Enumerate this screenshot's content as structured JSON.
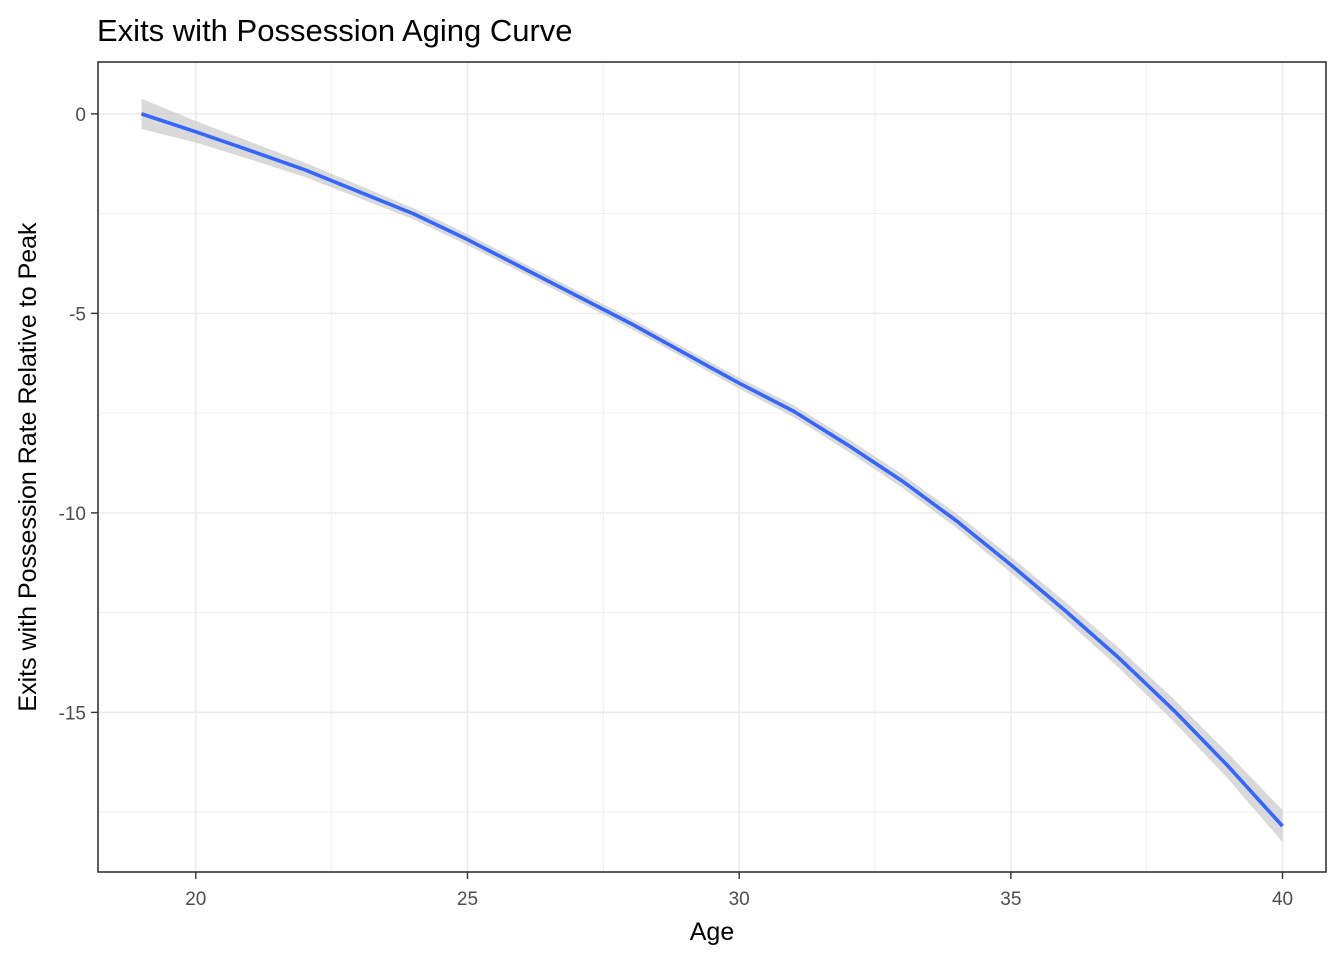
{
  "chart_data": {
    "type": "line",
    "title": "Exits with Possession Aging Curve",
    "xlabel": "Age",
    "ylabel": "Exits with Possession Rate Relative to Peak",
    "xlim": [
      18.2,
      40.8
    ],
    "ylim": [
      -19.0,
      1.3
    ],
    "x_ticks": [
      20,
      25,
      30,
      35,
      40
    ],
    "x_tick_labels": [
      "20",
      "25",
      "30",
      "35",
      "40"
    ],
    "x_minor_ticks": [
      22.5,
      27.5,
      32.5,
      37.5
    ],
    "y_ticks": [
      0,
      -5,
      -10,
      -15
    ],
    "y_tick_labels": [
      "0",
      "-5",
      "-10",
      "-15"
    ],
    "y_minor_ticks": [
      -2.5,
      -7.5,
      -12.5,
      -17.5
    ],
    "grid": true,
    "theme": "bw",
    "series": [
      {
        "color": "#3366ff",
        "band_color": "#cccccc",
        "x": [
          19,
          20,
          21,
          22,
          23,
          24,
          25,
          26,
          27,
          28,
          29,
          30,
          31,
          32,
          33,
          34,
          35,
          36,
          37,
          38,
          39,
          40
        ],
        "y": [
          0.0,
          -0.45,
          -0.92,
          -1.4,
          -1.95,
          -2.5,
          -3.15,
          -3.85,
          -4.55,
          -5.25,
          -6.0,
          -6.75,
          -7.45,
          -8.3,
          -9.2,
          -10.2,
          -11.3,
          -12.45,
          -13.65,
          -14.95,
          -16.35,
          -17.85
        ],
        "lower": [
          -0.38,
          -0.72,
          -1.14,
          -1.58,
          -2.11,
          -2.64,
          -3.29,
          -3.98,
          -4.68,
          -5.38,
          -6.13,
          -6.89,
          -7.6,
          -8.46,
          -9.37,
          -10.38,
          -11.5,
          -12.67,
          -13.9,
          -15.23,
          -16.67,
          -18.25
        ],
        "upper": [
          0.38,
          -0.18,
          -0.7,
          -1.22,
          -1.79,
          -2.36,
          -3.01,
          -3.72,
          -4.42,
          -5.12,
          -5.87,
          -6.61,
          -7.3,
          -8.14,
          -9.03,
          -10.02,
          -11.1,
          -12.23,
          -13.4,
          -14.67,
          -16.03,
          -17.45
        ]
      }
    ]
  }
}
